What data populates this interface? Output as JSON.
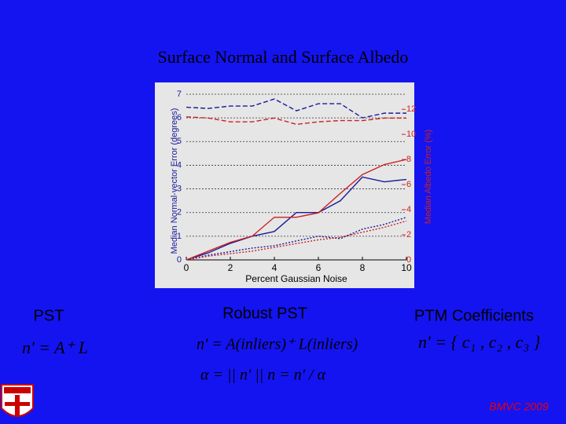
{
  "slide": {
    "title": "Surface Normal and Surface Albedo",
    "columns": [
      {
        "heading": "PST",
        "formulas": [
          "n' = A⁺ L"
        ]
      },
      {
        "heading": "Robust PST",
        "formulas": [
          "n' = A(inliers)⁺ L(inliers)",
          "α = || n' ||     n = n' / α"
        ]
      },
      {
        "heading": "PTM Coefficients",
        "formulas": [
          "n' = { c₁ , c₂ , c₃ }"
        ]
      }
    ],
    "footer": "BMVC 2009"
  },
  "chart_data": {
    "type": "line",
    "xlabel": "Percent Gaussian Noise",
    "ylabel": "Median Normal-vector Error (degrees)",
    "y2label": "Median Albedo Error (%)",
    "x": [
      0,
      1,
      2,
      3,
      4,
      5,
      6,
      7,
      8,
      9,
      10
    ],
    "xlim": [
      0,
      10
    ],
    "xticks": [
      0,
      2,
      4,
      6,
      8,
      10
    ],
    "ylim": [
      0,
      7
    ],
    "yticks": [
      0,
      1,
      2,
      3,
      4,
      5,
      6,
      7
    ],
    "y2lim": [
      0,
      13.2
    ],
    "y2ticks": [
      0,
      2,
      4,
      6,
      8,
      10,
      12
    ],
    "grid": true,
    "series": [
      {
        "color": "#1a1a9a",
        "dash": "solid",
        "values": [
          0,
          0.3,
          0.7,
          1.0,
          1.2,
          2.0,
          2.0,
          2.5,
          3.5,
          3.3,
          3.4
        ]
      },
      {
        "color": "#cc2222",
        "dash": "solid",
        "axis": "y2",
        "values": [
          0,
          0.7,
          1.4,
          1.9,
          3.4,
          3.4,
          3.75,
          5.3,
          6.8,
          7.6,
          8.0
        ]
      },
      {
        "color": "#1a1a9a",
        "dash": "dashed",
        "values": [
          6.45,
          6.4,
          6.5,
          6.5,
          6.8,
          6.3,
          6.6,
          6.6,
          6.0,
          6.2,
          6.2
        ]
      },
      {
        "color": "#cc2222",
        "dash": "dashed",
        "axis": "y2",
        "values": [
          11.4,
          11.3,
          11.0,
          11.0,
          11.3,
          10.8,
          11.0,
          11.1,
          11.1,
          11.3,
          11.3
        ]
      },
      {
        "color": "#1a1a9a",
        "dash": "dotted",
        "values": [
          0,
          0.2,
          0.35,
          0.5,
          0.6,
          0.8,
          1.0,
          0.9,
          1.3,
          1.5,
          1.8
        ]
      },
      {
        "color": "#cc2222",
        "dash": "dotted",
        "axis": "y2",
        "values": [
          0,
          0.3,
          0.5,
          0.7,
          1.0,
          1.3,
          1.6,
          1.8,
          2.2,
          2.6,
          3.1
        ]
      }
    ]
  }
}
